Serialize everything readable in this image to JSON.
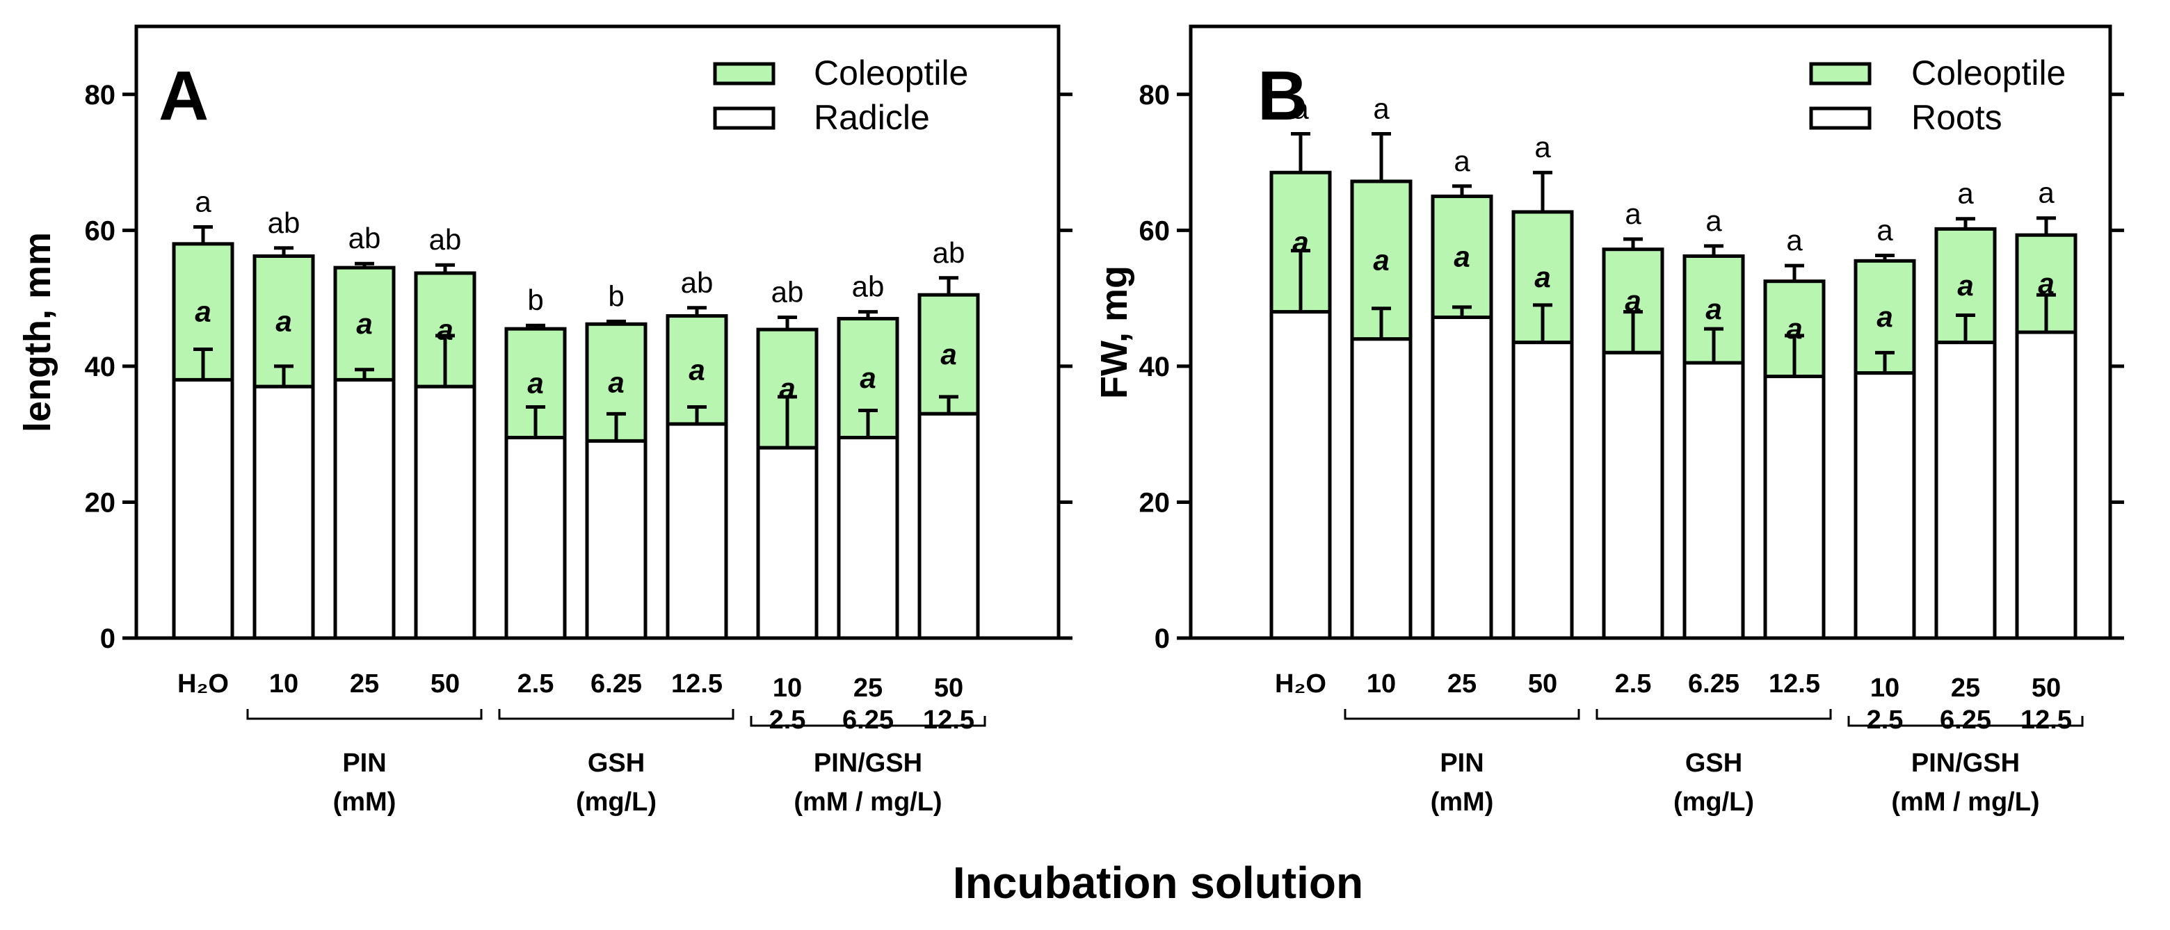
{
  "colors": {
    "upper": "#b8f5b0",
    "lower": "#ffffff",
    "axis": "#000000"
  },
  "x_title": "Incubation solution",
  "categories": [
    {
      "top": "H₂O",
      "bottom": ""
    },
    {
      "top": "10",
      "bottom": ""
    },
    {
      "top": "25",
      "bottom": ""
    },
    {
      "top": "50",
      "bottom": ""
    },
    {
      "top": "2.5",
      "bottom": ""
    },
    {
      "top": "6.25",
      "bottom": ""
    },
    {
      "top": "12.5",
      "bottom": ""
    },
    {
      "top": "10",
      "bottom": "2.5"
    },
    {
      "top": "25",
      "bottom": "6.25"
    },
    {
      "top": "50",
      "bottom": "12.5"
    }
  ],
  "groups": [
    {
      "name": "PIN",
      "unit": "(mM)",
      "start": 1,
      "end": 3
    },
    {
      "name": "GSH",
      "unit": "(mg/L)",
      "start": 4,
      "end": 6
    },
    {
      "name": "PIN/GSH",
      "unit": "(mM / mg/L)",
      "start": 7,
      "end": 9
    }
  ],
  "chart_data": [
    {
      "type": "bar",
      "stacked": true,
      "panel": "A",
      "ylabel": "length, mm",
      "ylim": [
        0,
        90
      ],
      "yticks": [
        0,
        20,
        40,
        60,
        80
      ],
      "legend": [
        "Coleoptile",
        "Radicle"
      ],
      "legend_position": "top-right",
      "series": [
        {
          "name": "Radicle",
          "values": [
            38,
            37,
            38,
            37,
            29.5,
            29,
            31.5,
            28,
            29.5,
            33
          ],
          "errors": [
            4.5,
            3,
            1.5,
            7.5,
            4.5,
            4,
            2.5,
            7.5,
            4,
            2.5
          ],
          "labels": [
            "a",
            "a",
            "a",
            "a",
            "a",
            "a",
            "a",
            "a",
            "a",
            "a"
          ]
        },
        {
          "name": "Coleoptile",
          "totals": [
            58,
            56.2,
            54.5,
            53.7,
            45.5,
            46.2,
            47.4,
            45.4,
            47,
            50.5
          ],
          "errors": [
            2.5,
            1.2,
            0.6,
            1.2,
            0.5,
            0.4,
            1.2,
            1.8,
            1,
            2.5
          ],
          "labels": [
            "a",
            "ab",
            "ab",
            "ab",
            "b",
            "b",
            "ab",
            "ab",
            "ab",
            "ab"
          ]
        }
      ]
    },
    {
      "type": "bar",
      "stacked": true,
      "panel": "B",
      "ylabel": "FW, mg",
      "ylim": [
        0,
        90
      ],
      "yticks": [
        0,
        20,
        40,
        60,
        80
      ],
      "legend": [
        "Coleoptile",
        "Roots"
      ],
      "legend_position": "top-right",
      "series": [
        {
          "name": "Roots",
          "values": [
            48,
            44,
            47.2,
            43.5,
            42,
            40.5,
            38.5,
            39,
            43.5,
            45
          ],
          "errors": [
            9,
            4.5,
            1.5,
            5.5,
            6,
            5,
            6,
            3,
            4,
            5.5
          ],
          "labels": [
            "a",
            "a",
            "a",
            "a",
            "a",
            "a",
            "a",
            "a",
            "a",
            "a"
          ]
        },
        {
          "name": "Coleoptile",
          "totals": [
            68.5,
            67.2,
            65,
            62.7,
            57.2,
            56.2,
            52.5,
            55.5,
            60.2,
            59.3
          ],
          "errors": [
            5.7,
            7,
            1.5,
            5.8,
            1.5,
            1.5,
            2.3,
            0.8,
            1.5,
            2.5
          ],
          "labels": [
            "a",
            "a",
            "a",
            "a",
            "a",
            "a",
            "a",
            "a",
            "a",
            "a"
          ]
        }
      ]
    }
  ]
}
